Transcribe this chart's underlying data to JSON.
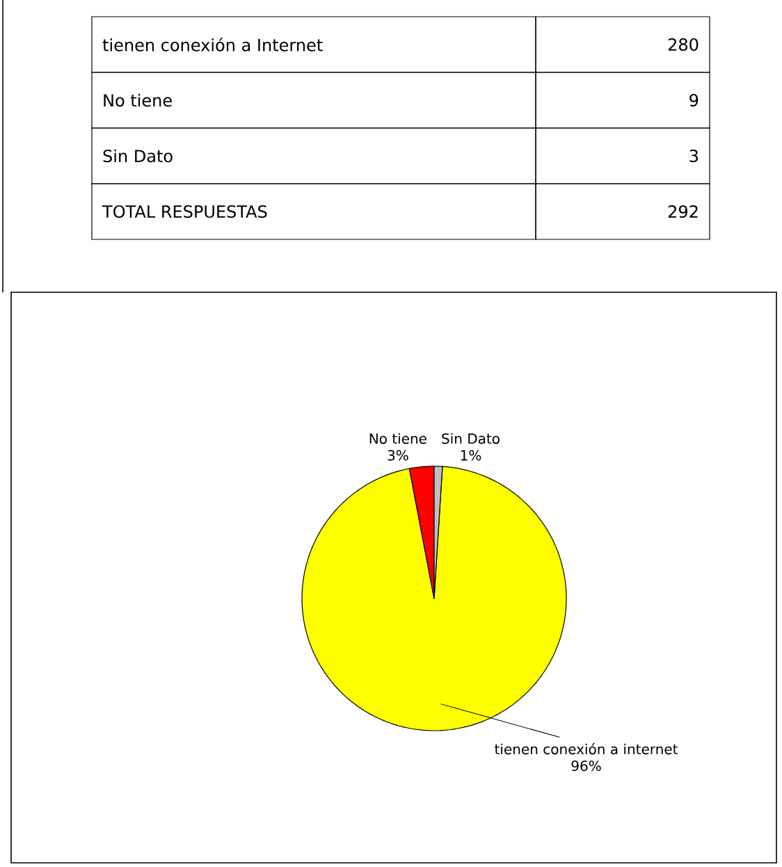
{
  "chart_data": {
    "type": "pie",
    "categories": [
      "tienen conexión a internet",
      "No tiene",
      "Sin Dato"
    ],
    "values": [
      96,
      3,
      1
    ],
    "value_labels": [
      "96%",
      "3%",
      "1%"
    ],
    "colors": [
      "#ffff00",
      "#ff0000",
      "#c0c0c0"
    ],
    "annotations": [
      "tienen conexión a Internet",
      "280",
      "No tiene",
      "9",
      "Sin Dato",
      "3",
      "TOTAL RESPUESTAS",
      "292"
    ]
  }
}
